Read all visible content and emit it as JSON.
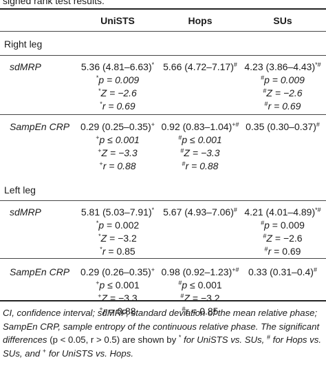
{
  "caption_fragment": "signed rank test results.",
  "columns": [
    "UniSTS",
    "Hops",
    "SUs"
  ],
  "sections": [
    {
      "label": "Right leg",
      "rows": [
        {
          "label": "sdMRP",
          "cells": [
            {
              "value": "5.36 (4.81–6.63)",
              "mark": "*",
              "p": "= 0.009",
              "p_mark": "*",
              "z": "= −2.6",
              "z_mark": "*",
              "r": "= 0.69",
              "r_mark": "*"
            },
            {
              "value": "5.66 (4.72–7.17)",
              "mark": "#",
              "p": "",
              "p_mark": "",
              "z": "",
              "z_mark": "",
              "r": "",
              "r_mark": ""
            },
            {
              "value": "4.23 (3.86–4.43)",
              "mark": "*#",
              "p": "= 0.009",
              "p_mark": "#",
              "z": "= −2.6",
              "z_mark": "#",
              "r": "= 0.69",
              "r_mark": "#"
            }
          ]
        },
        {
          "label": "SampEn CRP",
          "cells": [
            {
              "value": "0.29 (0.25–0.35)",
              "mark": "+",
              "p": "≤ 0.001",
              "p_mark": "+",
              "z": "= −3.3",
              "z_mark": "+",
              "r": "= 0.88",
              "r_mark": "+"
            },
            {
              "value": "0.92 (0.83–1.04)",
              "mark": "+#",
              "p": "≤ 0.001",
              "p_mark": "#",
              "z": "= −3.3",
              "z_mark": "#",
              "r": "= 0.88",
              "r_mark": "#"
            },
            {
              "value": "0.35 (0.30–0.37)",
              "mark": "#",
              "p": "",
              "p_mark": "",
              "z": "",
              "z_mark": "",
              "r": "",
              "r_mark": ""
            }
          ]
        }
      ]
    },
    {
      "label": "Left leg",
      "rows": [
        {
          "label": "sdMRP",
          "cells": [
            {
              "value": "5.81 (5.03–7.91)",
              "mark": "*",
              "p": "= 0.002",
              "p_mark": "*",
              "z": "= −3.2",
              "z_mark": "*",
              "r": "= 0.85",
              "r_mark": "*"
            },
            {
              "value": "5.67 (4.93–7.06)",
              "mark": "#",
              "p": "",
              "p_mark": "",
              "z": "",
              "z_mark": "",
              "r": "",
              "r_mark": ""
            },
            {
              "value": "4.21 (4.01–4.89)",
              "mark": "*#",
              "p": "= 0.009",
              "p_mark": "#",
              "z": "= −2.6",
              "z_mark": "#",
              "r": "= 0.69",
              "r_mark": "#"
            }
          ]
        },
        {
          "label": "SampEn CRP",
          "cells": [
            {
              "value": "0.29 (0.26–0.35)",
              "mark": "+",
              "p": "≤ 0.001",
              "p_mark": "+",
              "z": "= −3.3",
              "z_mark": "+",
              "r": "= 0.88",
              "r_mark": "+"
            },
            {
              "value": "0.98 (0.92–1.23)",
              "mark": "+#",
              "p": "≤ 0.001",
              "p_mark": "#",
              "z": "= −3.2",
              "z_mark": "#",
              "r": "= 0.85",
              "r_mark": "#"
            },
            {
              "value": "0.33 (0.31–0.4)",
              "mark": "#",
              "p": "",
              "p_mark": "",
              "z": "",
              "z_mark": "",
              "r": "",
              "r_mark": ""
            }
          ]
        }
      ]
    }
  ],
  "footnote": {
    "abbrev": "CI, confidence interval; sdMRP, standard deviation of the mean relative phase; SampEn CRP, sample entropy of the continuous relative phase. The significant differences",
    "criteria": "(p < 0.05, r > 0.5) are shown by",
    "mark1": "*",
    "text1": "for UniSTS vs. SUs,",
    "mark2": "#",
    "text2": "for Hops vs. SUs, and",
    "mark3": "+",
    "text3": "for UniSTS vs. Hops."
  }
}
